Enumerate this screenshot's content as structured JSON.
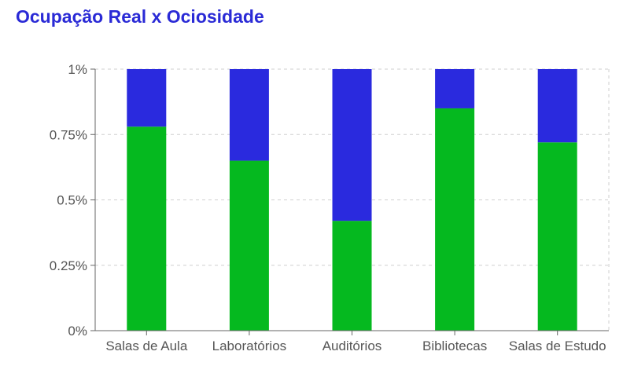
{
  "chart_data": {
    "type": "bar",
    "stacked": true,
    "title": "Ocupação Real x Ociosidade",
    "xlabel": "",
    "ylabel": "",
    "ylim": [
      0,
      1
    ],
    "yticks": [
      {
        "value": 0,
        "label": "0%"
      },
      {
        "value": 0.25,
        "label": "0.25%"
      },
      {
        "value": 0.5,
        "label": "0.5%"
      },
      {
        "value": 0.75,
        "label": "0.75%"
      },
      {
        "value": 1,
        "label": "1%"
      }
    ],
    "grid": true,
    "categories": [
      "Salas de Aula",
      "Laboratórios",
      "Auditórios",
      "Bibliotecas",
      "Salas de Estudo"
    ],
    "series": [
      {
        "values": [
          0.78,
          0.65,
          0.42,
          0.85,
          0.72
        ],
        "color": "#05b91f"
      },
      {
        "values": [
          0.22,
          0.35,
          0.58,
          0.15,
          0.28
        ],
        "color": "#2a2ade"
      }
    ]
  }
}
